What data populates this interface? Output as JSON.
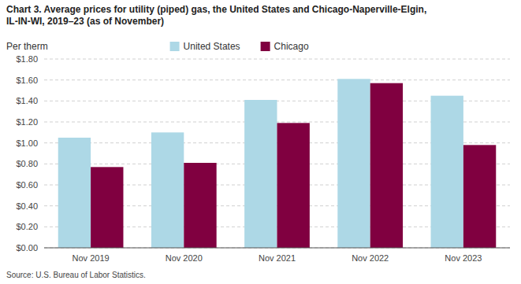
{
  "chart_data": {
    "type": "bar",
    "title": "Chart 3. Average prices for utility (piped) gas, the United States and Chicago-Naperville-Elgin,\nIL-IN-WI, 2019–23 (as of November)",
    "ylabel": "Per therm",
    "source": "Source: U.S. Bureau of Labor Statistics.",
    "categories": [
      "Nov 2019",
      "Nov 2020",
      "Nov 2021",
      "Nov 2022",
      "Nov 2023"
    ],
    "series": [
      {
        "name": "United States",
        "color": "#add8e6",
        "values": [
          1.05,
          1.1,
          1.41,
          1.61,
          1.45
        ]
      },
      {
        "name": "Chicago",
        "color": "#800040",
        "values": [
          0.77,
          0.81,
          1.19,
          1.57,
          0.98
        ]
      }
    ],
    "ylim": [
      0,
      1.8
    ],
    "yticks": [
      {
        "value": 0.0,
        "label": "$0.00"
      },
      {
        "value": 0.2,
        "label": "$0.20"
      },
      {
        "value": 0.4,
        "label": "$0.40"
      },
      {
        "value": 0.6,
        "label": "$0.60"
      },
      {
        "value": 0.8,
        "label": "$0.80"
      },
      {
        "value": 1.0,
        "label": "$1.00"
      },
      {
        "value": 1.2,
        "label": "$1.20"
      },
      {
        "value": 1.4,
        "label": "$1.40"
      },
      {
        "value": 1.6,
        "label": "$1.60"
      },
      {
        "value": 1.8,
        "label": "$1.80"
      }
    ],
    "grid": true,
    "legend": "top"
  }
}
